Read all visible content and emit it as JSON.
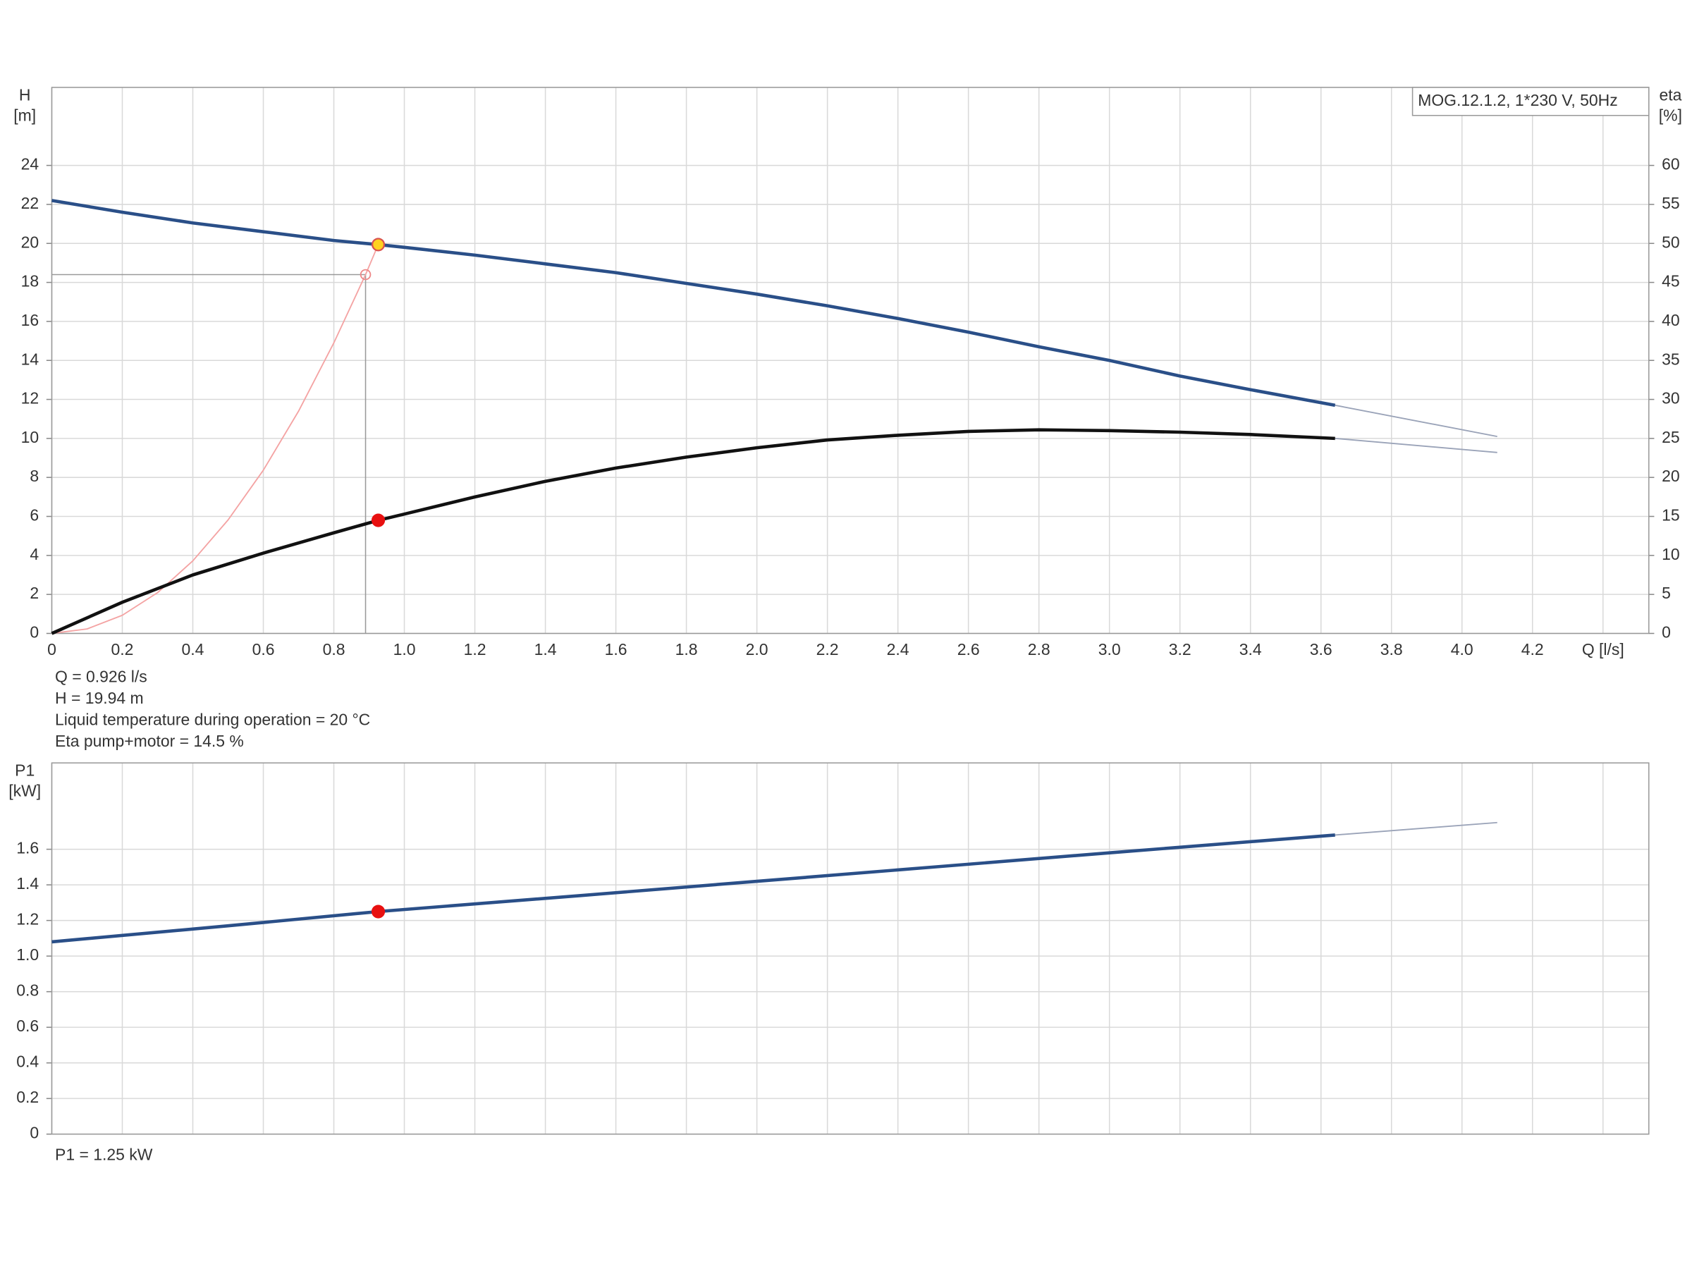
{
  "chart_data": [
    {
      "type": "line",
      "label": "MOG.12.1.2, 1*230 V, 50Hz",
      "ylabel": "H",
      "yunit": "[m]",
      "y2label": "eta",
      "y2unit": "[%]",
      "xlim": [
        0,
        4.53
      ],
      "ylim": [
        0,
        28
      ],
      "y2lim": [
        0,
        70
      ],
      "xticks": [
        0,
        0.2,
        0.4,
        0.6,
        0.8,
        {
          "value": 1,
          "label": "1.0"
        },
        1.2,
        1.4,
        1.6,
        1.8,
        {
          "value": 2,
          "label": "2.0"
        },
        2.2,
        2.4,
        2.6,
        2.8,
        {
          "value": 3,
          "label": "3.0"
        },
        3.2,
        3.4,
        3.6,
        3.8,
        {
          "value": 4,
          "label": "4.0"
        },
        4.2,
        {
          "value": 4.4,
          "label": "Q [l/s]"
        }
      ],
      "yticks": [
        0,
        2,
        4,
        6,
        8,
        10,
        12,
        14,
        16,
        18,
        20,
        22,
        24
      ],
      "y2ticks": [
        0,
        5,
        10,
        15,
        20,
        25,
        30,
        35,
        40,
        45,
        50,
        55,
        60
      ],
      "grid": true,
      "series": [
        {
          "color": "#f4a3a3",
          "weight": "thin",
          "x": [
            0,
            0.1,
            0.2,
            0.3,
            0.4,
            0.5,
            0.6,
            0.7,
            0.8,
            0.89,
            0.926
          ],
          "values": [
            0,
            0.23,
            0.93,
            2.09,
            3.72,
            5.82,
            8.37,
            11.4,
            14.9,
            18.4,
            19.94
          ]
        },
        {
          "color": "#9aa3b8",
          "weight": "thin",
          "x": [
            3.64,
            4.1
          ],
          "values": [
            11.7,
            10.1
          ]
        },
        {
          "color": "#9aa3b8",
          "weight": "thin",
          "axis": "y2",
          "x": [
            3.64,
            4.1
          ],
          "values": [
            25,
            23.2
          ]
        },
        {
          "color": "#2a4f88",
          "weight": "bold",
          "x": [
            0,
            0.2,
            0.4,
            0.6,
            0.8,
            0.926,
            1.0,
            1.2,
            1.4,
            1.6,
            1.8,
            2.0,
            2.2,
            2.4,
            2.6,
            2.8,
            3.0,
            3.2,
            3.4,
            3.64
          ],
          "values": [
            22.2,
            21.6,
            21.05,
            20.6,
            20.15,
            19.94,
            19.8,
            19.4,
            18.95,
            18.5,
            17.95,
            17.4,
            16.8,
            16.15,
            15.45,
            14.7,
            14.0,
            13.2,
            12.5,
            11.7
          ]
        },
        {
          "color": "#111111",
          "weight": "bold",
          "axis": "y2",
          "x": [
            0,
            0.2,
            0.4,
            0.6,
            0.8,
            0.926,
            1.0,
            1.2,
            1.4,
            1.6,
            1.8,
            2.0,
            2.2,
            2.4,
            2.6,
            2.8,
            3.0,
            3.2,
            3.4,
            3.64
          ],
          "values": [
            0,
            4,
            7.5,
            10.3,
            12.9,
            14.5,
            15.3,
            17.5,
            19.5,
            21.2,
            22.6,
            23.8,
            24.8,
            25.4,
            25.9,
            26.1,
            26.0,
            25.8,
            25.5,
            25.0
          ]
        }
      ],
      "points": [
        {
          "x": 0.89,
          "y": 18.4,
          "color": "#e88",
          "style": "hollow",
          "guide": true
        },
        {
          "x": 0.926,
          "y": 19.94,
          "color": "#ffd21f",
          "style": "filled"
        },
        {
          "x": 0.926,
          "y": 14.5,
          "axis": "y2",
          "color": "#e81010",
          "style": "filled"
        }
      ],
      "notes": [
        "Q = 0.926 l/s",
        "H = 19.94 m",
        "Liquid temperature during operation = 20 °C",
        "Eta pump+motor = 14.5 %"
      ]
    },
    {
      "type": "line",
      "ylabel": "P1",
      "yunit": "[kW]",
      "xlim": [
        0,
        4.53
      ],
      "ylim": [
        0,
        2.085
      ],
      "xticks": [
        0,
        0.2,
        0.4,
        0.6,
        0.8,
        1,
        1.2,
        1.4,
        1.6,
        1.8,
        2,
        2.2,
        2.4,
        2.6,
        2.8,
        3,
        3.2,
        3.4,
        3.6,
        3.8,
        4,
        4.2,
        4.4
      ],
      "show_xtick_labels": false,
      "yticks": [
        0,
        0.2,
        0.4,
        0.6,
        0.8,
        {
          "value": 1,
          "label": "1.0"
        },
        1.2,
        1.4,
        1.6
      ],
      "grid": true,
      "series": [
        {
          "color": "#9aa3b8",
          "weight": "thin",
          "x": [
            3.64,
            4.1
          ],
          "values": [
            1.68,
            1.75
          ]
        },
        {
          "color": "#2a4f88",
          "weight": "bold",
          "x": [
            0,
            0.5,
            0.926,
            1.5,
            2.0,
            2.5,
            3.0,
            3.64
          ],
          "values": [
            1.08,
            1.17,
            1.25,
            1.34,
            1.42,
            1.5,
            1.58,
            1.68
          ]
        }
      ],
      "points": [
        {
          "x": 0.926,
          "y": 1.25,
          "color": "#e81010",
          "style": "filled"
        }
      ],
      "notes": [
        "P1 = 1.25 kW"
      ]
    }
  ]
}
